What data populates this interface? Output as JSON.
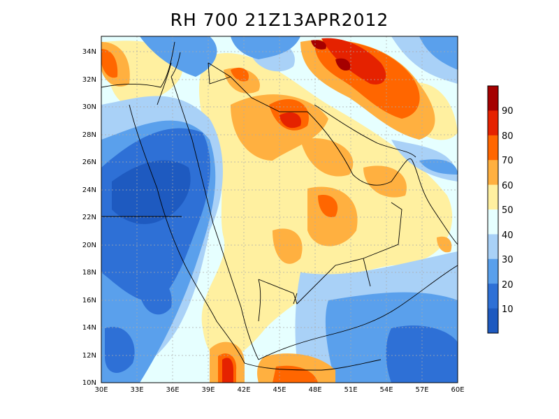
{
  "title": "RH 700 21Z13APR2012",
  "map": {
    "region": "Arabian Peninsula",
    "field": "relative humidity",
    "lon_range": [
      30,
      60
    ],
    "lat_range": [
      10,
      35
    ],
    "lat_labels": [
      "34N",
      "32N",
      "30N",
      "28N",
      "26N",
      "24N",
      "22N",
      "20N",
      "18N",
      "16N",
      "14N",
      "12N",
      "10N"
    ],
    "lon_labels": [
      "30E",
      "33E",
      "36E",
      "39E",
      "42E",
      "45E",
      "48E",
      "51E",
      "54E",
      "57E",
      "60E"
    ],
    "grid": true
  },
  "colorbar": {
    "labels": [
      "90",
      "80",
      "70",
      "60",
      "50",
      "40",
      "30",
      "20",
      "10"
    ],
    "colors": [
      "#a50000",
      "#e52200",
      "#ff6600",
      "#ffb040",
      "#fff0a0",
      "#e6ffff",
      "#a9d1f7",
      "#5aa0ec",
      "#2e70d6",
      "#1e5ac0"
    ]
  }
}
